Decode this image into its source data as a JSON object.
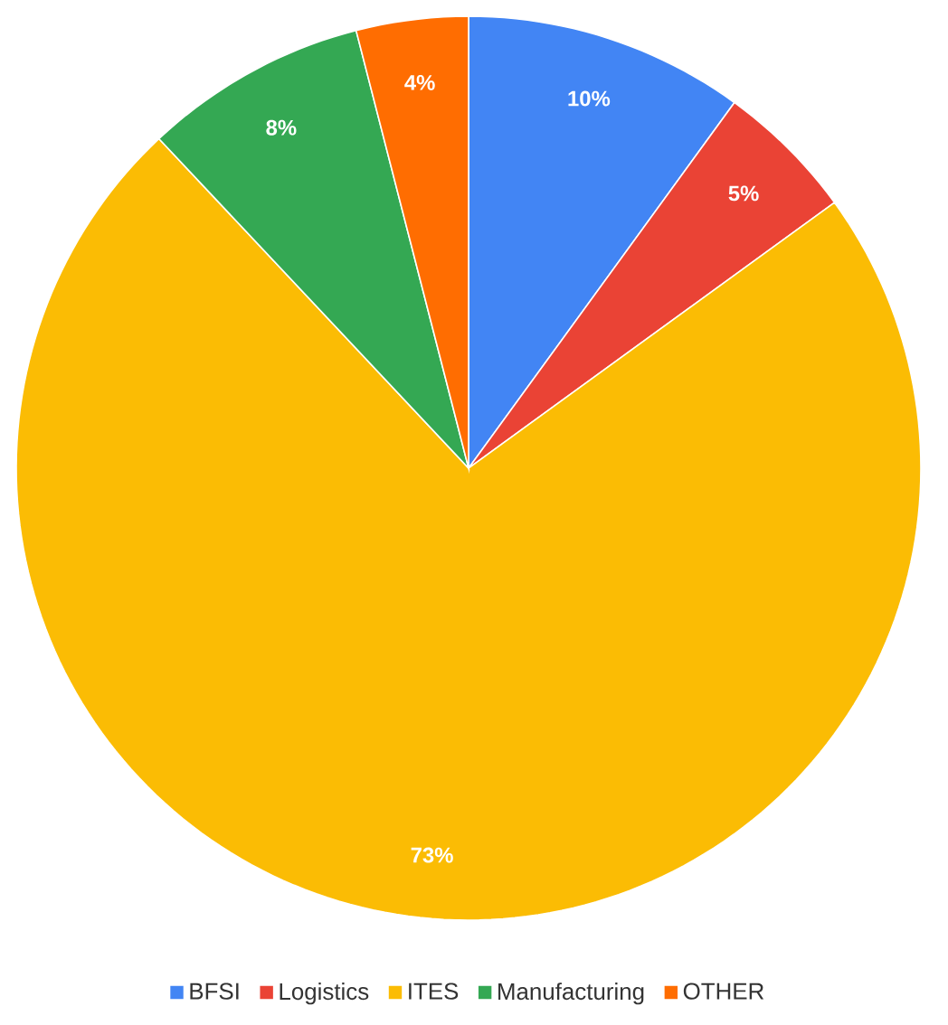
{
  "chart_data": {
    "type": "pie",
    "categories": [
      "BFSI",
      "Logistics",
      "ITES",
      "Manufacturing",
      "OTHER"
    ],
    "values": [
      10,
      5,
      73,
      8,
      4
    ],
    "colors": [
      "#4285f4",
      "#ea4335",
      "#fbbc04",
      "#34a853",
      "#ff6d01"
    ],
    "value_labels": [
      "10%",
      "5%",
      "73%",
      "8%",
      "4%"
    ],
    "legend": "bottom"
  }
}
